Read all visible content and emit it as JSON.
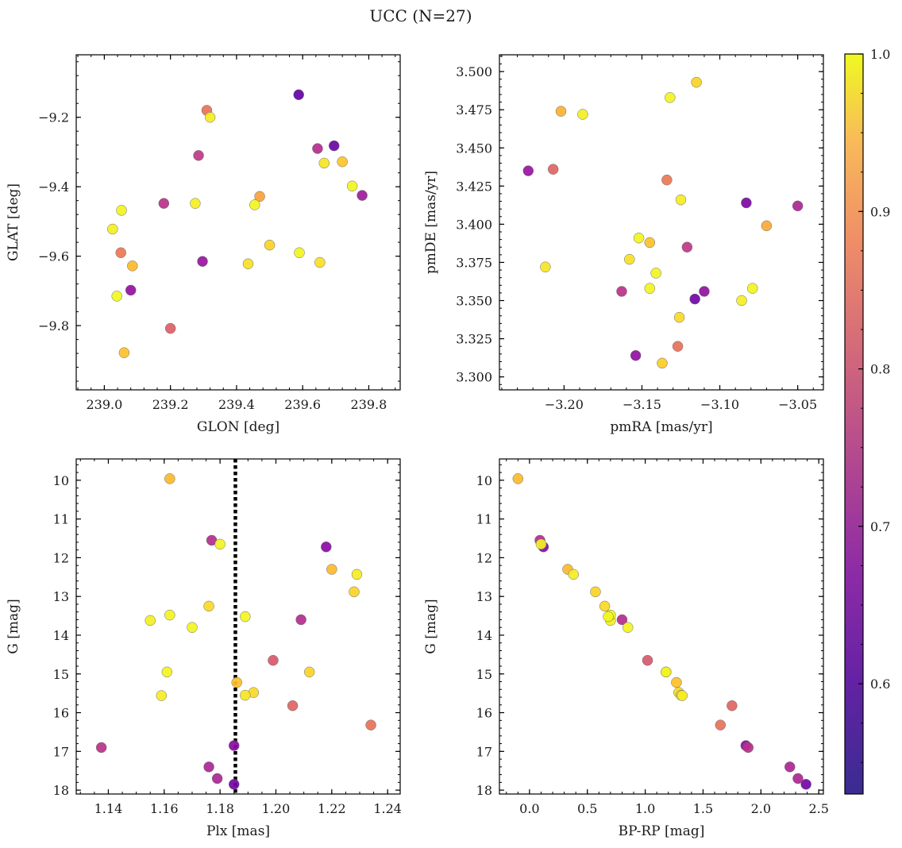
{
  "figure": {
    "title": "UCC (N=27)"
  },
  "colorbar": {
    "cmap": "plasma",
    "range": [
      0.53,
      1.0
    ],
    "ticks": [
      "0.6",
      "0.7",
      "0.8",
      "0.9",
      "1.0"
    ]
  },
  "chart_data": [
    {
      "type": "scatter",
      "xlabel": "GLON [deg]",
      "ylabel": "GLAT [deg]",
      "xlim": [
        238.915,
        239.895
      ],
      "ylim": [
        -9.985,
        -9.02
      ],
      "xticks": [
        "239.0",
        "239.2",
        "239.4",
        "239.6",
        "239.8"
      ],
      "yticks": [
        "−9.2",
        "−9.4",
        "−9.6",
        "−9.8"
      ],
      "points": [
        {
          "x": 239.588,
          "y": -9.135,
          "c": 0.54
        },
        {
          "x": 239.31,
          "y": -9.18,
          "c": 0.76
        },
        {
          "x": 239.32,
          "y": -9.2,
          "c": 0.95
        },
        {
          "x": 239.645,
          "y": -9.29,
          "c": 0.65
        },
        {
          "x": 239.695,
          "y": -9.282,
          "c": 0.55
        },
        {
          "x": 239.285,
          "y": -9.31,
          "c": 0.67
        },
        {
          "x": 239.665,
          "y": -9.332,
          "c": 0.93
        },
        {
          "x": 239.72,
          "y": -9.328,
          "c": 0.88
        },
        {
          "x": 239.75,
          "y": -9.398,
          "c": 0.98
        },
        {
          "x": 239.47,
          "y": -9.428,
          "c": 0.83
        },
        {
          "x": 239.78,
          "y": -9.425,
          "c": 0.62
        },
        {
          "x": 239.18,
          "y": -9.448,
          "c": 0.66
        },
        {
          "x": 239.275,
          "y": -9.448,
          "c": 0.96
        },
        {
          "x": 239.455,
          "y": -9.452,
          "c": 0.98
        },
        {
          "x": 239.052,
          "y": -9.468,
          "c": 0.98
        },
        {
          "x": 239.025,
          "y": -9.522,
          "c": 0.96
        },
        {
          "x": 239.5,
          "y": -9.568,
          "c": 0.9
        },
        {
          "x": 239.05,
          "y": -9.59,
          "c": 0.77
        },
        {
          "x": 239.59,
          "y": -9.59,
          "c": 0.98
        },
        {
          "x": 239.297,
          "y": -9.615,
          "c": 0.61
        },
        {
          "x": 239.435,
          "y": -9.622,
          "c": 0.92
        },
        {
          "x": 239.652,
          "y": -9.618,
          "c": 0.92
        },
        {
          "x": 239.085,
          "y": -9.628,
          "c": 0.86
        },
        {
          "x": 239.08,
          "y": -9.698,
          "c": 0.6
        },
        {
          "x": 239.038,
          "y": -9.715,
          "c": 1.0
        },
        {
          "x": 239.2,
          "y": -9.808,
          "c": 0.73
        },
        {
          "x": 239.06,
          "y": -9.878,
          "c": 0.87
        }
      ]
    },
    {
      "type": "scatter",
      "xlabel": "pmRA [mas/yr]",
      "ylabel": "pmDE [mas/yr]",
      "xlim": [
        -3.2415,
        -3.0335
      ],
      "ylim": [
        3.2915,
        3.511
      ],
      "xticks": [
        "−3.20",
        "−3.15",
        "−3.10",
        "−3.05"
      ],
      "yticks": [
        "3.300",
        "3.325",
        "3.350",
        "3.375",
        "3.400",
        "3.425",
        "3.450",
        "3.475",
        "3.500"
      ],
      "points": [
        {
          "x": -3.115,
          "y": 3.493,
          "c": 0.9
        },
        {
          "x": -3.132,
          "y": 3.483,
          "c": 0.98
        },
        {
          "x": -3.202,
          "y": 3.474,
          "c": 0.85
        },
        {
          "x": -3.188,
          "y": 3.472,
          "c": 0.96
        },
        {
          "x": -3.223,
          "y": 3.435,
          "c": 0.61
        },
        {
          "x": -3.207,
          "y": 3.436,
          "c": 0.74
        },
        {
          "x": -3.134,
          "y": 3.429,
          "c": 0.77
        },
        {
          "x": -3.125,
          "y": 3.416,
          "c": 0.95
        },
        {
          "x": -3.083,
          "y": 3.414,
          "c": 0.57
        },
        {
          "x": -3.05,
          "y": 3.412,
          "c": 0.64
        },
        {
          "x": -3.07,
          "y": 3.399,
          "c": 0.84
        },
        {
          "x": -3.152,
          "y": 3.391,
          "c": 0.98
        },
        {
          "x": -3.145,
          "y": 3.388,
          "c": 0.87
        },
        {
          "x": -3.121,
          "y": 3.385,
          "c": 0.67
        },
        {
          "x": -3.158,
          "y": 3.377,
          "c": 0.92
        },
        {
          "x": -3.212,
          "y": 3.372,
          "c": 0.93
        },
        {
          "x": -3.141,
          "y": 3.368,
          "c": 0.98
        },
        {
          "x": -3.163,
          "y": 3.356,
          "c": 0.66
        },
        {
          "x": -3.145,
          "y": 3.358,
          "c": 0.98
        },
        {
          "x": -3.11,
          "y": 3.356,
          "c": 0.6
        },
        {
          "x": -3.116,
          "y": 3.351,
          "c": 0.56
        },
        {
          "x": -3.079,
          "y": 3.358,
          "c": 0.98
        },
        {
          "x": -3.086,
          "y": 3.35,
          "c": 0.96
        },
        {
          "x": -3.126,
          "y": 3.339,
          "c": 0.91
        },
        {
          "x": -3.127,
          "y": 3.32,
          "c": 0.76
        },
        {
          "x": -3.154,
          "y": 3.314,
          "c": 0.6
        },
        {
          "x": -3.137,
          "y": 3.309,
          "c": 0.89
        }
      ]
    },
    {
      "type": "scatter",
      "xlabel": "Plx [mas]",
      "ylabel": "G [mag]",
      "xlim": [
        1.1285,
        1.2445
      ],
      "ylim": [
        18.1,
        9.45
      ],
      "xticks": [
        "1.14",
        "1.16",
        "1.18",
        "1.20",
        "1.22",
        "1.24"
      ],
      "yticks": [
        "10",
        "11",
        "12",
        "13",
        "14",
        "15",
        "16",
        "17",
        "18"
      ],
      "vline": {
        "x": 1.1855,
        "style": "dotted"
      },
      "points": [
        {
          "x": 1.162,
          "y": 9.96,
          "c": 0.86
        },
        {
          "x": 1.177,
          "y": 11.55,
          "c": 0.65
        },
        {
          "x": 1.18,
          "y": 11.65,
          "c": 0.98
        },
        {
          "x": 1.218,
          "y": 11.72,
          "c": 0.59
        },
        {
          "x": 1.22,
          "y": 12.3,
          "c": 0.86
        },
        {
          "x": 1.229,
          "y": 12.43,
          "c": 0.95
        },
        {
          "x": 1.228,
          "y": 12.88,
          "c": 0.9
        },
        {
          "x": 1.176,
          "y": 13.25,
          "c": 0.91
        },
        {
          "x": 1.162,
          "y": 13.48,
          "c": 0.98
        },
        {
          "x": 1.189,
          "y": 13.52,
          "c": 0.99
        },
        {
          "x": 1.155,
          "y": 13.62,
          "c": 0.96
        },
        {
          "x": 1.209,
          "y": 13.6,
          "c": 0.65
        },
        {
          "x": 1.17,
          "y": 13.8,
          "c": 0.98
        },
        {
          "x": 1.199,
          "y": 14.65,
          "c": 0.72
        },
        {
          "x": 1.161,
          "y": 14.95,
          "c": 0.98
        },
        {
          "x": 1.212,
          "y": 14.95,
          "c": 0.9
        },
        {
          "x": 1.186,
          "y": 15.22,
          "c": 0.87
        },
        {
          "x": 1.192,
          "y": 15.48,
          "c": 0.91
        },
        {
          "x": 1.189,
          "y": 15.55,
          "c": 0.93
        },
        {
          "x": 1.159,
          "y": 15.56,
          "c": 0.95
        },
        {
          "x": 1.206,
          "y": 15.82,
          "c": 0.74
        },
        {
          "x": 1.234,
          "y": 16.32,
          "c": 0.76
        },
        {
          "x": 1.1375,
          "y": 16.9,
          "c": 0.66
        },
        {
          "x": 1.185,
          "y": 16.85,
          "c": 0.59
        },
        {
          "x": 1.176,
          "y": 17.4,
          "c": 0.64
        },
        {
          "x": 1.179,
          "y": 17.7,
          "c": 0.64
        },
        {
          "x": 1.185,
          "y": 17.85,
          "c": 0.56
        }
      ]
    },
    {
      "type": "scatter",
      "xlabel": "BP-RP [mag]",
      "ylabel": "G [mag]",
      "xlim": [
        -0.26,
        2.54
      ],
      "ylim": [
        18.1,
        9.45
      ],
      "xticks": [
        "0.0",
        "0.5",
        "1.0",
        "1.5",
        "2.0",
        "2.5"
      ],
      "yticks": [
        "10",
        "11",
        "12",
        "13",
        "14",
        "15",
        "16",
        "17",
        "18"
      ],
      "points": [
        {
          "x": -0.1,
          "y": 9.96,
          "c": 0.86
        },
        {
          "x": 0.09,
          "y": 11.55,
          "c": 0.65
        },
        {
          "x": 0.1,
          "y": 11.65,
          "c": 0.98
        },
        {
          "x": 0.12,
          "y": 11.72,
          "c": 0.59
        },
        {
          "x": 0.33,
          "y": 12.3,
          "c": 0.86
        },
        {
          "x": 0.38,
          "y": 12.43,
          "c": 0.95
        },
        {
          "x": 0.57,
          "y": 12.88,
          "c": 0.9
        },
        {
          "x": 0.65,
          "y": 13.25,
          "c": 0.91
        },
        {
          "x": 0.7,
          "y": 13.48,
          "c": 0.98
        },
        {
          "x": 0.68,
          "y": 13.52,
          "c": 0.99
        },
        {
          "x": 0.7,
          "y": 13.62,
          "c": 0.96
        },
        {
          "x": 0.8,
          "y": 13.6,
          "c": 0.65
        },
        {
          "x": 0.85,
          "y": 13.8,
          "c": 0.98
        },
        {
          "x": 1.02,
          "y": 14.65,
          "c": 0.72
        },
        {
          "x": 1.18,
          "y": 14.95,
          "c": 0.98
        },
        {
          "x": 1.18,
          "y": 14.95,
          "c": 0.9
        },
        {
          "x": 1.27,
          "y": 15.22,
          "c": 0.87
        },
        {
          "x": 1.29,
          "y": 15.48,
          "c": 0.91
        },
        {
          "x": 1.31,
          "y": 15.55,
          "c": 0.93
        },
        {
          "x": 1.32,
          "y": 15.56,
          "c": 0.95
        },
        {
          "x": 1.75,
          "y": 15.82,
          "c": 0.74
        },
        {
          "x": 1.65,
          "y": 16.32,
          "c": 0.76
        },
        {
          "x": 1.87,
          "y": 16.85,
          "c": 0.59
        },
        {
          "x": 1.89,
          "y": 16.9,
          "c": 0.66
        },
        {
          "x": 2.25,
          "y": 17.4,
          "c": 0.64
        },
        {
          "x": 2.32,
          "y": 17.7,
          "c": 0.64
        },
        {
          "x": 2.39,
          "y": 17.85,
          "c": 0.56
        }
      ]
    }
  ]
}
